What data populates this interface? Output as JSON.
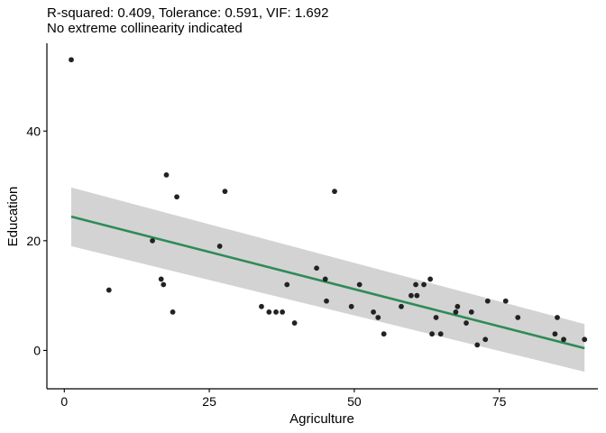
{
  "chart_data": {
    "type": "scatter",
    "title_lines": [
      "R-squared: 0.409, Tolerance: 0.591, VIF: 1.692",
      "No extreme collinearity indicated"
    ],
    "xlabel": "Agriculture",
    "ylabel": "Education",
    "xlim": [
      -3,
      92
    ],
    "ylim": [
      -7,
      56
    ],
    "x_ticks": [
      0,
      25,
      50,
      75
    ],
    "y_ticks": [
      0,
      20,
      40
    ],
    "grid": false,
    "points": [
      {
        "x": 1.2,
        "y": 53
      },
      {
        "x": 7.7,
        "y": 11
      },
      {
        "x": 15.2,
        "y": 20
      },
      {
        "x": 16.7,
        "y": 13
      },
      {
        "x": 17.1,
        "y": 12
      },
      {
        "x": 17.6,
        "y": 32
      },
      {
        "x": 18.7,
        "y": 7
      },
      {
        "x": 19.4,
        "y": 28
      },
      {
        "x": 26.8,
        "y": 19
      },
      {
        "x": 27.7,
        "y": 29
      },
      {
        "x": 34.0,
        "y": 8
      },
      {
        "x": 35.3,
        "y": 7
      },
      {
        "x": 36.5,
        "y": 7
      },
      {
        "x": 37.6,
        "y": 7
      },
      {
        "x": 38.4,
        "y": 12
      },
      {
        "x": 39.7,
        "y": 5
      },
      {
        "x": 43.5,
        "y": 15
      },
      {
        "x": 45.0,
        "y": 13
      },
      {
        "x": 45.2,
        "y": 9
      },
      {
        "x": 46.6,
        "y": 29
      },
      {
        "x": 49.5,
        "y": 8
      },
      {
        "x": 50.9,
        "y": 12
      },
      {
        "x": 53.3,
        "y": 7
      },
      {
        "x": 54.1,
        "y": 6
      },
      {
        "x": 55.1,
        "y": 3
      },
      {
        "x": 58.1,
        "y": 8
      },
      {
        "x": 59.8,
        "y": 10
      },
      {
        "x": 60.6,
        "y": 12
      },
      {
        "x": 60.8,
        "y": 10
      },
      {
        "x": 62.0,
        "y": 12
      },
      {
        "x": 63.1,
        "y": 13
      },
      {
        "x": 63.4,
        "y": 3
      },
      {
        "x": 64.1,
        "y": 6
      },
      {
        "x": 64.9,
        "y": 3
      },
      {
        "x": 67.5,
        "y": 7
      },
      {
        "x": 67.8,
        "y": 8
      },
      {
        "x": 69.3,
        "y": 5
      },
      {
        "x": 70.2,
        "y": 7
      },
      {
        "x": 71.2,
        "y": 1
      },
      {
        "x": 72.6,
        "y": 2
      },
      {
        "x": 73.0,
        "y": 9
      },
      {
        "x": 76.1,
        "y": 9
      },
      {
        "x": 78.2,
        "y": 6
      },
      {
        "x": 84.6,
        "y": 3
      },
      {
        "x": 85.0,
        "y": 6
      },
      {
        "x": 86.1,
        "y": 2
      },
      {
        "x": 89.7,
        "y": 2
      }
    ],
    "fit_line": {
      "x": [
        1.2,
        89.7
      ],
      "y": [
        24.4,
        0.4
      ],
      "color": "#2e8b57"
    },
    "confidence_band": {
      "x": [
        1.2,
        89.7
      ],
      "upper": [
        29.7,
        4.8
      ],
      "lower": [
        19.0,
        -3.9
      ],
      "color": "#d3d3d3"
    },
    "point_color": "#222222"
  }
}
